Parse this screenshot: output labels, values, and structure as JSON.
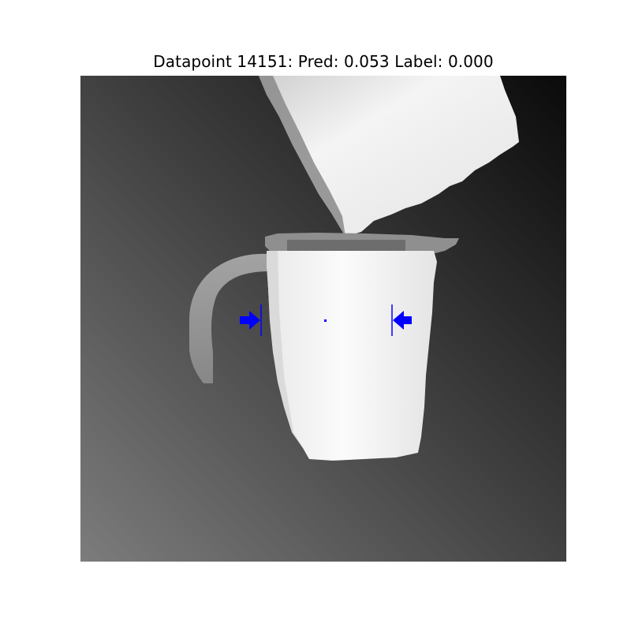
{
  "figure": {
    "title": "Datapoint 14151: Pred: 0.053 Label: 0.000"
  },
  "image": {
    "kind": "grayscale depth image",
    "scene": "white pitcher with handle below an overhanging white block",
    "colors": {
      "background_dark": "#111111",
      "background_light": "#7a7a7a",
      "object_light": "#f2f2f2",
      "handle_gray": "#8e8e8e",
      "annotation_blue": "#0000ff"
    }
  },
  "annotation": {
    "marks": [
      "left-arrow",
      "right-arrow",
      "center-point"
    ]
  }
}
